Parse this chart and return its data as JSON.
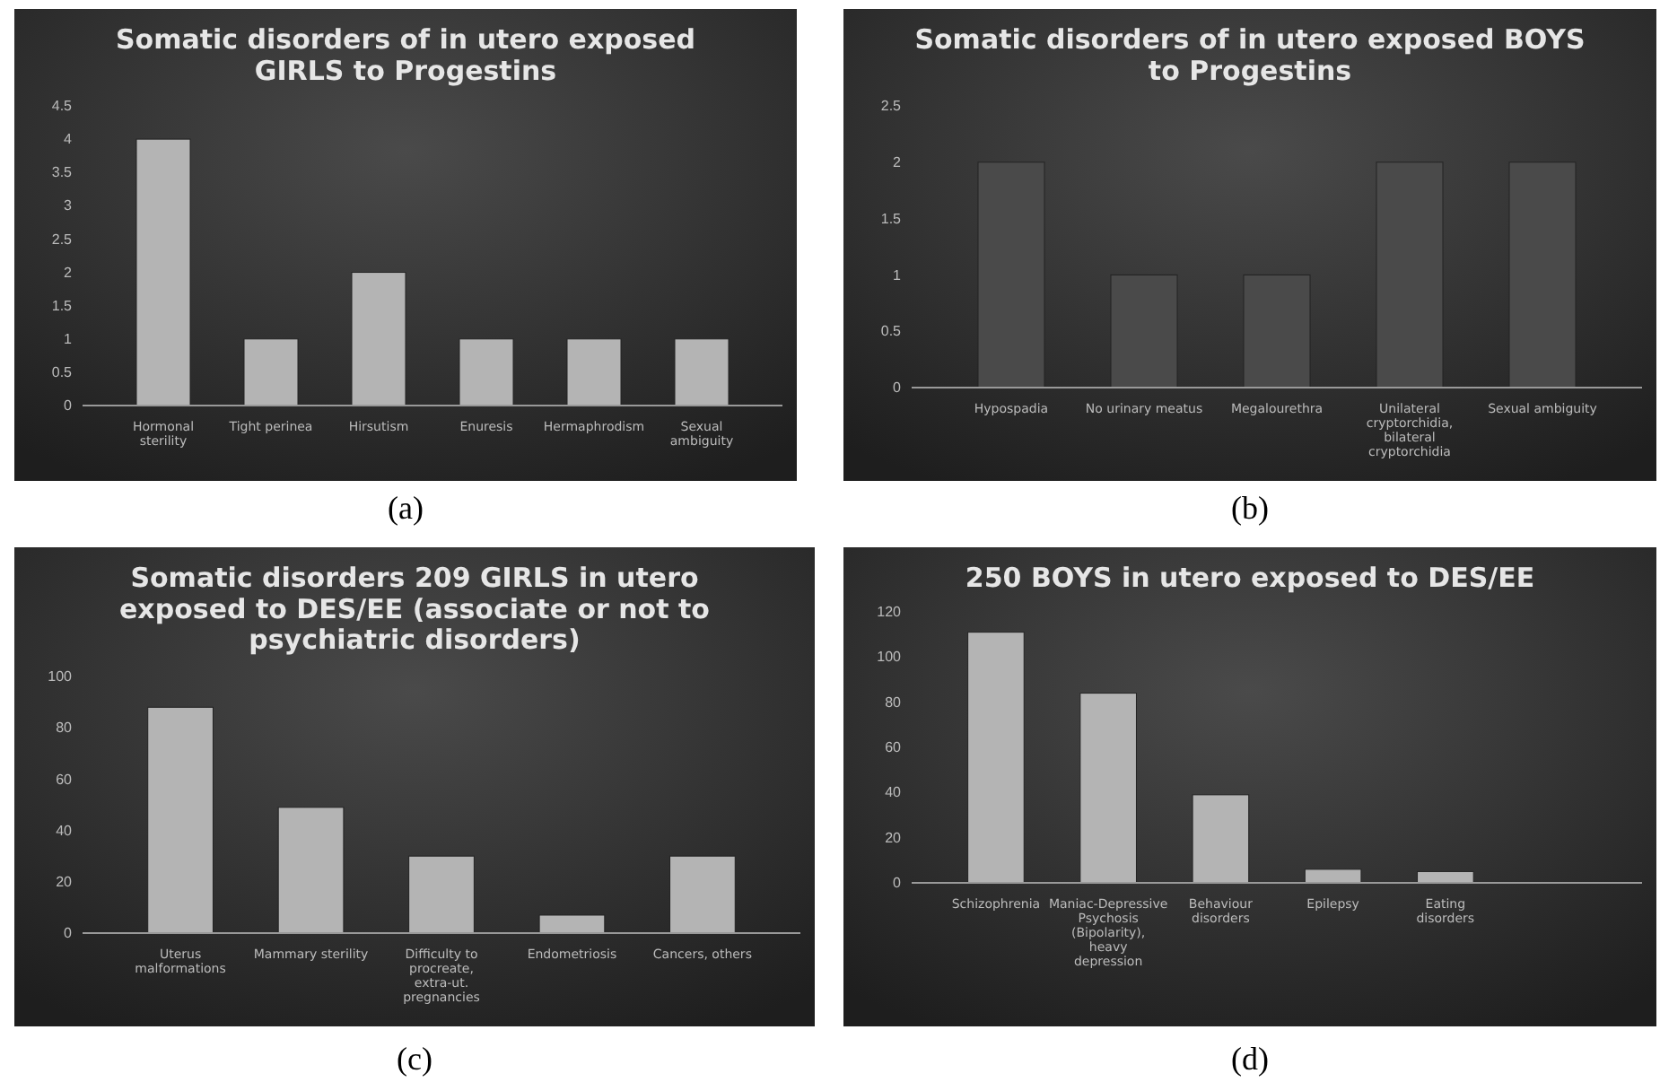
{
  "chart_data": [
    {
      "type": "bar",
      "title": "Somatic disorders of in utero exposed GIRLS  to Progestins",
      "categories": [
        "Hormonal sterility",
        "Tight perinea",
        "Hirsutism",
        "Enuresis",
        "Hermaphrodism",
        "Sexual ambiguity"
      ],
      "values": [
        4,
        1,
        2,
        1,
        1,
        1
      ],
      "color": "#b4b4b4",
      "ylim": [
        0,
        4.5
      ],
      "yticks": [
        0,
        0.5,
        1,
        1.5,
        2,
        2.5,
        3,
        3.5,
        4,
        4.5
      ],
      "grid": false,
      "annotations": [
        "(a)"
      ]
    },
    {
      "type": "bar",
      "title": "Somatic disorders of in utero exposed BOYS to Progestins",
      "categories": [
        "Hypospadia",
        "No urinary meatus",
        "Megalourethra",
        "Unilateral cryptorchidia, bilateral cryptorchidia",
        "Sexual ambiguity"
      ],
      "values": [
        2,
        1,
        1,
        2,
        2
      ],
      "color": "#4a4a4a",
      "ylim": [
        0,
        2.5
      ],
      "yticks": [
        0,
        0.5,
        1,
        1.5,
        2,
        2.5
      ],
      "grid": false,
      "annotations": [
        "(b)"
      ]
    },
    {
      "type": "bar",
      "title": "Somatic disorders 209 GIRLS in utero exposed to DES/EE (associate or not to psychiatric disorders)",
      "categories": [
        "Uterus malformations",
        "Mammary sterility",
        "Difficulty to procreate, extra-ut. pregnancies",
        "Endometriosis",
        "Cancers, others"
      ],
      "values": [
        88,
        49,
        30,
        7,
        30
      ],
      "color": "#b4b4b4",
      "ylim": [
        0,
        100
      ],
      "yticks": [
        0,
        20,
        40,
        60,
        80,
        100
      ],
      "grid": false,
      "annotations": [
        "(c)"
      ]
    },
    {
      "type": "bar",
      "title": "250 BOYS in utero exposed to DES/EE",
      "categories": [
        "Schizophrenia",
        "Maniac-Depressive Psychosis (Bipolarity), heavy depression",
        "Behaviour disorders",
        "Epilepsy",
        "Eating disorders",
        null
      ],
      "values": [
        111,
        84,
        39,
        6,
        5,
        null
      ],
      "color": "#b4b4b4",
      "ylim": [
        0,
        120
      ],
      "yticks": [
        0,
        20,
        40,
        60,
        80,
        100,
        120
      ],
      "grid": false,
      "annotations": [
        "(d)"
      ]
    }
  ]
}
